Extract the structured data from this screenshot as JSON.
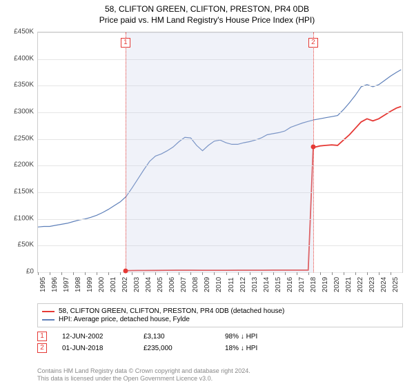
{
  "title": {
    "line1": "58, CLIFTON GREEN, CLIFTON, PRESTON, PR4 0DB",
    "line2": "Price paid vs. HM Land Registry's House Price Index (HPI)"
  },
  "chart": {
    "type": "line",
    "background_color": "#ffffff",
    "grid_color": "#e5e5e5",
    "x": {
      "min": 1995,
      "max": 2026,
      "tick_step": 1,
      "labels_rotation": -90
    },
    "y": {
      "min": 0,
      "max": 450000,
      "tick_step": 50000,
      "labels": [
        "£0",
        "£50K",
        "£100K",
        "£150K",
        "£200K",
        "£250K",
        "£300K",
        "£350K",
        "£400K",
        "£450K"
      ]
    },
    "shaded_span": {
      "from_year": 2002.45,
      "to_year": 2018.42
    },
    "vertical_markers": [
      {
        "id": "1",
        "year": 2002.45
      },
      {
        "id": "2",
        "year": 2018.42
      }
    ],
    "series": [
      {
        "name": "property",
        "color": "#e53935",
        "width": 1.8,
        "points": [
          [
            2002.45,
            3130
          ],
          [
            2002.6,
            3130
          ],
          [
            2003.0,
            3200
          ],
          [
            2003.5,
            3300
          ],
          [
            2004.0,
            3400
          ],
          [
            2005.0,
            3550
          ],
          [
            2006.0,
            3700
          ],
          [
            2007.0,
            3850
          ],
          [
            2008.0,
            3900
          ],
          [
            2009.0,
            3700
          ],
          [
            2010.0,
            3750
          ],
          [
            2011.0,
            3800
          ],
          [
            2012.0,
            3820
          ],
          [
            2013.0,
            3850
          ],
          [
            2014.0,
            3900
          ],
          [
            2015.0,
            3950
          ],
          [
            2016.0,
            4000
          ],
          [
            2017.0,
            4050
          ],
          [
            2018.0,
            4100
          ],
          [
            2018.42,
            235000
          ],
          [
            2018.6,
            235000
          ],
          [
            2019.0,
            237000
          ],
          [
            2019.5,
            238000
          ],
          [
            2020.0,
            239000
          ],
          [
            2020.5,
            238000
          ],
          [
            2021.0,
            248000
          ],
          [
            2021.5,
            258000
          ],
          [
            2022.0,
            270000
          ],
          [
            2022.5,
            282000
          ],
          [
            2023.0,
            288000
          ],
          [
            2023.5,
            284000
          ],
          [
            2024.0,
            288000
          ],
          [
            2024.5,
            295000
          ],
          [
            2025.0,
            302000
          ],
          [
            2025.5,
            308000
          ],
          [
            2025.9,
            311000
          ]
        ],
        "dots": [
          [
            2002.45,
            3130
          ],
          [
            2018.42,
            235000
          ]
        ]
      },
      {
        "name": "hpi",
        "color": "#5d7fb9",
        "width": 1.2,
        "points": [
          [
            1995.0,
            85000
          ],
          [
            1995.5,
            86000
          ],
          [
            1996.0,
            86000
          ],
          [
            1996.5,
            88000
          ],
          [
            1997.0,
            90000
          ],
          [
            1997.5,
            92000
          ],
          [
            1998.0,
            95000
          ],
          [
            1998.5,
            98000
          ],
          [
            1999.0,
            100000
          ],
          [
            1999.5,
            103000
          ],
          [
            2000.0,
            107000
          ],
          [
            2000.5,
            112000
          ],
          [
            2001.0,
            118000
          ],
          [
            2001.5,
            125000
          ],
          [
            2002.0,
            132000
          ],
          [
            2002.5,
            142000
          ],
          [
            2003.0,
            158000
          ],
          [
            2003.5,
            175000
          ],
          [
            2004.0,
            192000
          ],
          [
            2004.5,
            208000
          ],
          [
            2005.0,
            218000
          ],
          [
            2005.5,
            222000
          ],
          [
            2006.0,
            228000
          ],
          [
            2006.5,
            235000
          ],
          [
            2007.0,
            245000
          ],
          [
            2007.5,
            253000
          ],
          [
            2008.0,
            252000
          ],
          [
            2008.5,
            238000
          ],
          [
            2009.0,
            228000
          ],
          [
            2009.5,
            238000
          ],
          [
            2010.0,
            246000
          ],
          [
            2010.5,
            248000
          ],
          [
            2011.0,
            243000
          ],
          [
            2011.5,
            240000
          ],
          [
            2012.0,
            240000
          ],
          [
            2012.5,
            243000
          ],
          [
            2013.0,
            245000
          ],
          [
            2013.5,
            248000
          ],
          [
            2014.0,
            252000
          ],
          [
            2014.5,
            258000
          ],
          [
            2015.0,
            260000
          ],
          [
            2015.5,
            262000
          ],
          [
            2016.0,
            265000
          ],
          [
            2016.5,
            272000
          ],
          [
            2017.0,
            276000
          ],
          [
            2017.5,
            280000
          ],
          [
            2018.0,
            283000
          ],
          [
            2018.5,
            286000
          ],
          [
            2019.0,
            288000
          ],
          [
            2019.5,
            290000
          ],
          [
            2020.0,
            292000
          ],
          [
            2020.5,
            294000
          ],
          [
            2021.0,
            305000
          ],
          [
            2021.5,
            318000
          ],
          [
            2022.0,
            332000
          ],
          [
            2022.5,
            348000
          ],
          [
            2023.0,
            352000
          ],
          [
            2023.5,
            348000
          ],
          [
            2024.0,
            352000
          ],
          [
            2024.5,
            360000
          ],
          [
            2025.0,
            368000
          ],
          [
            2025.5,
            375000
          ],
          [
            2025.9,
            380000
          ]
        ]
      }
    ]
  },
  "legend": {
    "items": [
      {
        "color": "#e53935",
        "label": "58, CLIFTON GREEN, CLIFTON, PRESTON, PR4 0DB (detached house)"
      },
      {
        "color": "#5d7fb9",
        "label": "HPI: Average price, detached house, Fylde"
      }
    ]
  },
  "notes": [
    {
      "id": "1",
      "date": "12-JUN-2002",
      "price": "£3,130",
      "delta": "98% ↓ HPI"
    },
    {
      "id": "2",
      "date": "01-JUN-2018",
      "price": "£235,000",
      "delta": "18% ↓ HPI"
    }
  ],
  "footer": {
    "line1": "Contains HM Land Registry data © Crown copyright and database right 2024.",
    "line2": "This data is licensed under the Open Government Licence v3.0."
  }
}
